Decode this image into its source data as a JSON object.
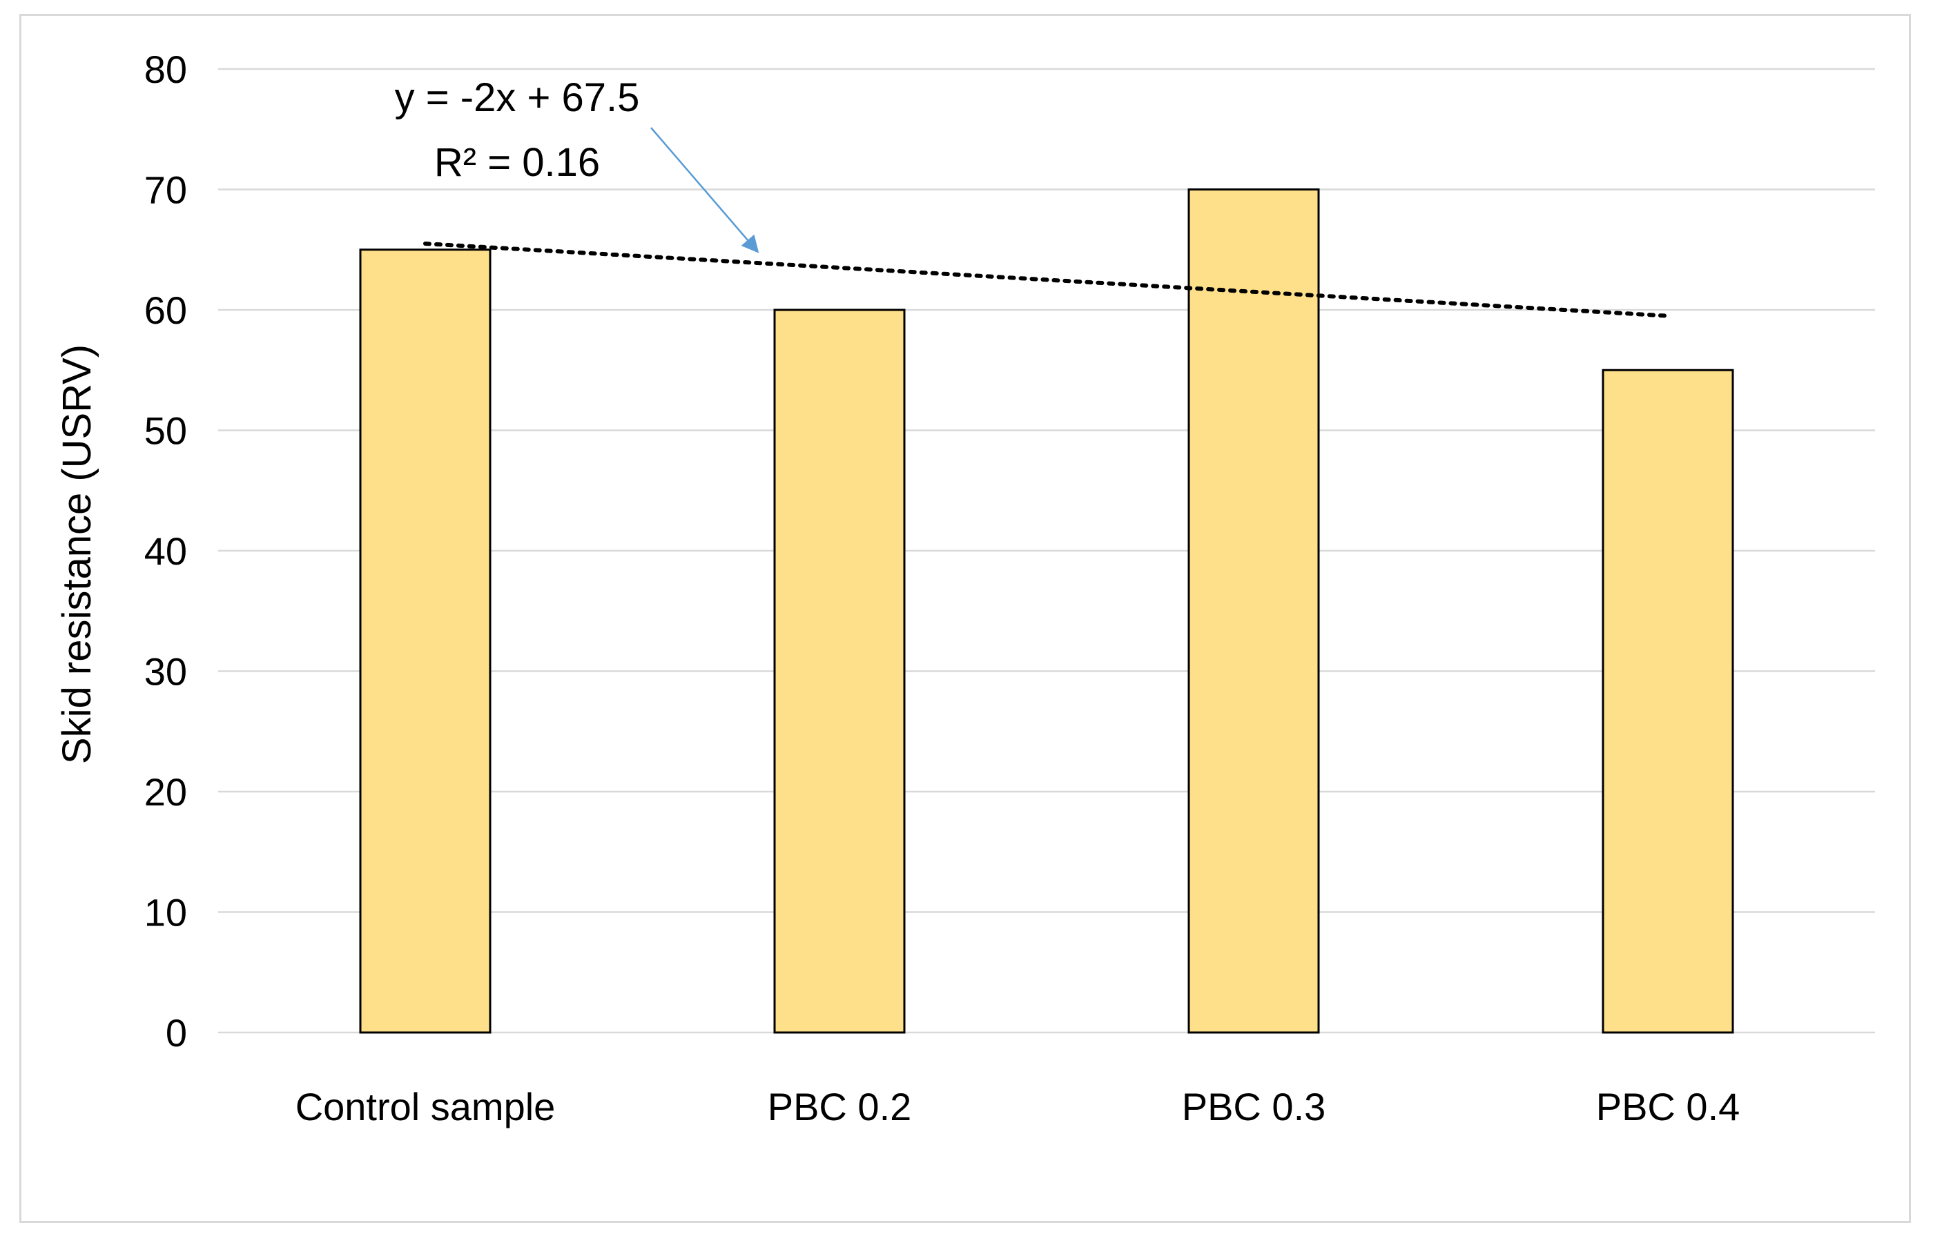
{
  "chart_data": {
    "type": "bar",
    "title": "",
    "xlabel": "",
    "ylabel": "Skid resistance (USRV)",
    "ylim": [
      0,
      80
    ],
    "yticks": [
      0,
      10,
      20,
      30,
      40,
      50,
      60,
      70,
      80
    ],
    "grid": true,
    "legend": "none",
    "categories": [
      "Control sample",
      "PBC 0.2",
      "PBC 0.3",
      "PBC 0.4"
    ],
    "values": [
      65,
      60,
      70,
      55
    ],
    "colors": {
      "bar_fill": "#ffe08a",
      "bar_stroke": "#000000",
      "grid": "#d9d9d9",
      "trendline": "#000000",
      "arrow": "#5b9bd5"
    },
    "trendline": {
      "type": "linear",
      "style": "dotted",
      "slope": -2,
      "intercept": 67.5,
      "equation_label": "y = -2x + 67.5",
      "r2_label": "R² = 0.16"
    }
  }
}
